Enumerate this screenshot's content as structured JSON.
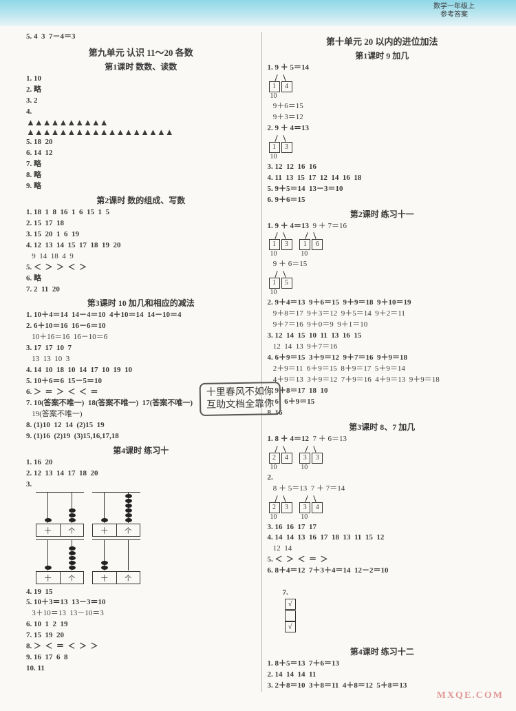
{
  "header": {
    "line1": "数学一年级上",
    "line2": "参考答案"
  },
  "left": {
    "pre": "5. 4  3  7－4＝3",
    "unit9": "第九单元  认识 11～20 各数",
    "l1": {
      "title": "第1课时  数数、读数",
      "r1": "1. 10",
      "r2": "2. 略",
      "r3": "3. 2",
      "r4": "4.",
      "tri1": "▲▲▲▲▲▲▲▲▲▲",
      "tri2": "▲▲▲▲▲▲▲▲▲▲▲▲▲▲▲▲▲▲",
      "r5": "5. 18  20",
      "r6": "6. 14  12",
      "r7": "7. 略",
      "r8": "8. 略",
      "r9": "9. 略"
    },
    "l2": {
      "title": "第2课时  数的组成、写数",
      "r1": "1. 18  1  8  16  1  6  15  1  5",
      "r2": "2. 15  17  18",
      "r3": "3. 15  20  1  6  19",
      "r4": "4. 12  13  14  15  17  18  19  20",
      "r4b": "   9  14  18  4  9",
      "r5": "5. ＜  ＞  ＞  ＜  ＞",
      "r6": "6. 略",
      "r7": "7. 2  11  20"
    },
    "l3": {
      "title": "第3课时  10 加几和相应的减法",
      "r1": "1. 10＋4＝14  14－4＝10  4＋10＝14  14－10＝4",
      "r2": "2. 6＋10＝16  16－6＝10",
      "r2b": "   10＋16＝16  16－10＝6",
      "r3": "3. 17  17  10  7",
      "r3b": "   13  13  10  3",
      "r4": "4. 14  10  18  10  14  17  10  19  10",
      "r5": "5. 10＋6＝6  15－5＝10",
      "r6": "6. ＞  ＝  ＞  ＜  ＜  ＝",
      "r7": "7. 10(答案不唯一)  18(答案不唯一)  17(答案不唯一)",
      "r7b": "   19(答案不唯一)",
      "r8": "8. (1)10  12  14  (2)15  19",
      "r9": "9. (1)16  (2)19  (3)15,16,17,18"
    },
    "l4": {
      "title": "第4课时  练习十",
      "r1": "1. 16  20",
      "r2": "2. 12  13  14  17  18  20",
      "r3": "3.",
      "r4": "4. 19  15",
      "r5": "5. 10＋3＝13  13－3＝10",
      "r5b": "   3＋10＝13  13－10＝3",
      "r6": "6. 10  1  2  19",
      "r7": "7. 15  19  20",
      "r8": "8. ＞  ＜  ＝  ＜  ＞  ＞",
      "r9": "9. 16  17  6  8",
      "r10": "10. 11"
    },
    "abacus_label_ten": "十",
    "abacus_label_one": "个"
  },
  "right": {
    "unit10": "第十单元  20 以内的进位加法",
    "l1": {
      "title": "第1课时  9 加几",
      "r1_expr": "1. 9 ＋ 5＝14",
      "s1a": "1",
      "s1b": "4",
      "s1t": "10",
      "r1b": "   9＋6＝15",
      "r1c": "   9＋3＝12",
      "r2_expr": "2. 9 ＋ 4＝13",
      "s2a": "1",
      "s2b": "3",
      "s2t": "10",
      "r3": "3. 12  12  16  16",
      "r4": "4. 11  13  15  17  12  14  16  18",
      "r5": "5. 9＋5＝14  13－3＝10",
      "r6": "6. 9＋6＝15"
    },
    "l2": {
      "title": "第2课时  练习十一",
      "r1_e1": "1. 9 ＋ 4＝13",
      "r1_e2": "9 ＋ 7＝16",
      "p1a": "1",
      "p1b": "3",
      "p2a": "1",
      "p2b": "6",
      "pt": "10",
      "r1_e3": "   9 ＋ 6＝15",
      "p3a": "1",
      "p3b": "5",
      "r2": "2. 9＋4＝13  9＋6＝15  9＋9＝18  9＋10＝19",
      "r2b": "   9＋8＝17  9＋3＝12  9＋5＝14  9＋2＝11",
      "r2c": "   9＋7＝16  9＋0＝9  9＋1＝10",
      "r3": "3. 12  14  15  10  11  13  16  15",
      "r3b": "   12  14  13  9＋7＝16",
      "r4": "4. 6＋9＝15  3＋9＝12  9＋7＝16  9＋9＝18",
      "r4b": "   2＋9＝11  6＋9＝15  8＋9＝17  5＋9＝14",
      "r4c": "   4＋9＝13  3＋9＝12  7＋9＝16  4＋9＝13  9＋9＝18",
      "r5": "5. 9＋8＝17  18  10",
      "r6": "7. 6   6＋9＝15",
      "r7": "8. 16"
    },
    "l3": {
      "title": "第3课时  8、7 加几",
      "r1_e1": "1. 8 ＋ 4＝12",
      "r1_e2": "7 ＋ 6＝13",
      "q1a": "2",
      "q1b": "4",
      "q2a": "3",
      "q2b": "3",
      "qt": "10",
      "r2": "2.",
      "r2_e1": "   8 ＋ 5＝13",
      "r2_e2": "7 ＋ 7＝14",
      "q3a": "2",
      "q3b": "3",
      "q4a": "3",
      "q4b": "4",
      "r3": "3. 16  16  17  17",
      "r4": "4. 14  14  13  16  17  18  13  11  15  12",
      "r4b": "   12  14",
      "r5": "5. ＜  ＞  ＜  ＝  ＞",
      "r6": "6. 8＋4＝12  7＋3＋4＝14  12－2＝10",
      "r7": "7. ",
      "chk1": "√",
      "chk2": "",
      "chk3": "√"
    },
    "l4": {
      "title": "第4课时  练习十二",
      "r1": "1. 8＋5＝13  7＋6＝13",
      "r2": "2. 14  14  14  11",
      "r3": "3. 2＋8＝10  3＋8＝11  4＋8＝12  5＋8＝13"
    }
  },
  "stamp": {
    "l1": "十里春风不如你",
    "l2": "互助文档全靠你"
  },
  "watermark": "MXQE.COM"
}
